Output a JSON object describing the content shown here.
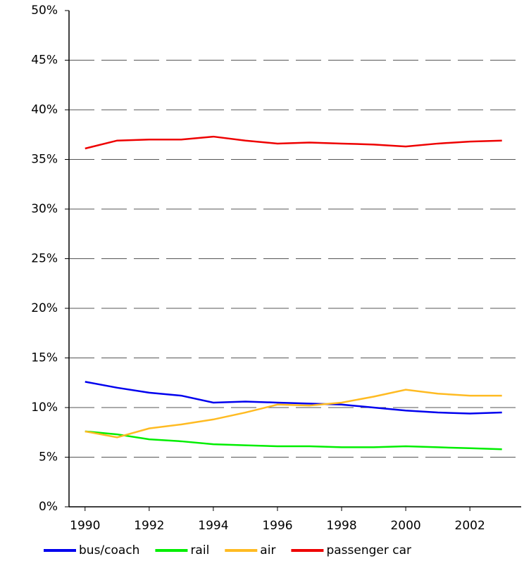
{
  "chart_data": {
    "type": "line",
    "x": [
      1990,
      1991,
      1992,
      1993,
      1994,
      1995,
      1996,
      1997,
      1998,
      1999,
      2000,
      2001,
      2002,
      2003
    ],
    "series": [
      {
        "name": "bus/coach",
        "color": "#0000ee",
        "values": [
          12.6,
          12.0,
          11.5,
          11.2,
          10.5,
          10.6,
          10.5,
          10.4,
          10.3,
          10.0,
          9.7,
          9.5,
          9.4,
          9.5
        ]
      },
      {
        "name": "rail",
        "color": "#00ee00",
        "values": [
          7.6,
          7.3,
          6.8,
          6.6,
          6.3,
          6.2,
          6.1,
          6.1,
          6.0,
          6.0,
          6.1,
          6.0,
          5.9,
          5.8
        ]
      },
      {
        "name": "air",
        "color": "#ffbb22",
        "values": [
          7.6,
          7.0,
          7.9,
          8.3,
          8.8,
          9.5,
          10.3,
          10.2,
          10.5,
          11.1,
          11.8,
          11.4,
          11.2,
          11.2
        ]
      },
      {
        "name": "passenger car",
        "color": "#ee0000",
        "values": [
          36.1,
          36.9,
          37.0,
          37.0,
          37.3,
          36.9,
          36.6,
          36.7,
          36.6,
          36.5,
          36.3,
          36.6,
          36.8,
          36.9
        ]
      }
    ],
    "xlim": [
      1989.5,
      2003.6
    ],
    "xticks": [
      1990,
      1992,
      1994,
      1996,
      1998,
      2000,
      2002
    ],
    "ylim": [
      0,
      50
    ],
    "yticks": [
      {
        "value": 0,
        "label": "0%"
      },
      {
        "value": 5,
        "label": "5%"
      },
      {
        "value": 10,
        "label": "10%"
      },
      {
        "value": 15,
        "label": "15%"
      },
      {
        "value": 20,
        "label": "20%"
      },
      {
        "value": 25,
        "label": "25%"
      },
      {
        "value": 30,
        "label": "30%"
      },
      {
        "value": 35,
        "label": "35%"
      },
      {
        "value": 40,
        "label": "40%"
      },
      {
        "value": 45,
        "label": "45%"
      },
      {
        "value": 50,
        "label": "50%"
      }
    ],
    "grid": true,
    "legend": "bottom"
  }
}
